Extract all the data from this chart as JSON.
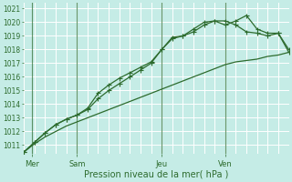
{
  "xlabel": "Pression niveau de la mer( hPa )",
  "bg_color": "#c5ece6",
  "grid_color": "#ffffff",
  "line_color": "#2d6b2d",
  "ylim": [
    1010.4,
    1021.4
  ],
  "xlim": [
    0,
    100
  ],
  "yticks": [
    1011,
    1012,
    1013,
    1014,
    1015,
    1016,
    1017,
    1018,
    1019,
    1020,
    1021
  ],
  "xtick_positions": [
    3,
    20,
    52,
    76
  ],
  "xtick_labels": [
    "Mer",
    "Sam",
    "Jeu",
    "Ven"
  ],
  "vline_positions": [
    3,
    20,
    52,
    76
  ],
  "xgrid_positions": [
    0,
    4,
    8,
    12,
    16,
    20,
    24,
    28,
    32,
    36,
    40,
    44,
    48,
    52,
    56,
    60,
    64,
    68,
    72,
    76,
    80,
    84,
    88,
    92,
    96,
    100
  ],
  "series1_x": [
    0,
    4,
    8,
    12,
    16,
    20,
    24,
    28,
    32,
    36,
    40,
    44,
    48,
    52,
    56,
    60,
    64,
    68,
    72,
    76,
    80,
    84,
    88,
    92,
    96,
    100
  ],
  "series1_y": [
    1010.5,
    1011.1,
    1011.6,
    1012.0,
    1012.4,
    1012.7,
    1013.0,
    1013.3,
    1013.6,
    1013.9,
    1014.2,
    1014.5,
    1014.8,
    1015.1,
    1015.4,
    1015.7,
    1016.0,
    1016.3,
    1016.6,
    1016.9,
    1017.1,
    1017.2,
    1017.3,
    1017.5,
    1017.6,
    1017.8
  ],
  "series2_x": [
    0,
    4,
    8,
    12,
    16,
    20,
    24,
    28,
    32,
    36,
    40,
    44,
    48,
    52,
    56,
    60,
    64,
    68,
    72,
    76,
    80,
    84,
    88,
    92,
    96,
    100
  ],
  "series2_y": [
    1010.5,
    1011.2,
    1011.9,
    1012.5,
    1012.9,
    1013.2,
    1013.6,
    1014.4,
    1015.0,
    1015.5,
    1016.0,
    1016.5,
    1017.0,
    1018.0,
    1018.8,
    1019.0,
    1019.5,
    1020.0,
    1020.1,
    1019.8,
    1020.1,
    1020.5,
    1019.5,
    1019.2,
    1019.2,
    1018.0
  ],
  "series3_x": [
    0,
    4,
    8,
    12,
    16,
    20,
    24,
    28,
    32,
    36,
    40,
    44,
    48,
    52,
    56,
    60,
    64,
    68,
    72,
    76,
    80,
    84,
    88,
    92,
    96,
    100
  ],
  "series3_y": [
    1010.5,
    1011.2,
    1011.9,
    1012.5,
    1012.9,
    1013.2,
    1013.7,
    1014.8,
    1015.4,
    1015.9,
    1016.3,
    1016.7,
    1017.1,
    1018.0,
    1018.9,
    1019.0,
    1019.3,
    1019.8,
    1020.1,
    1020.1,
    1019.8,
    1019.3,
    1019.2,
    1019.0,
    1019.2,
    1017.8
  ]
}
